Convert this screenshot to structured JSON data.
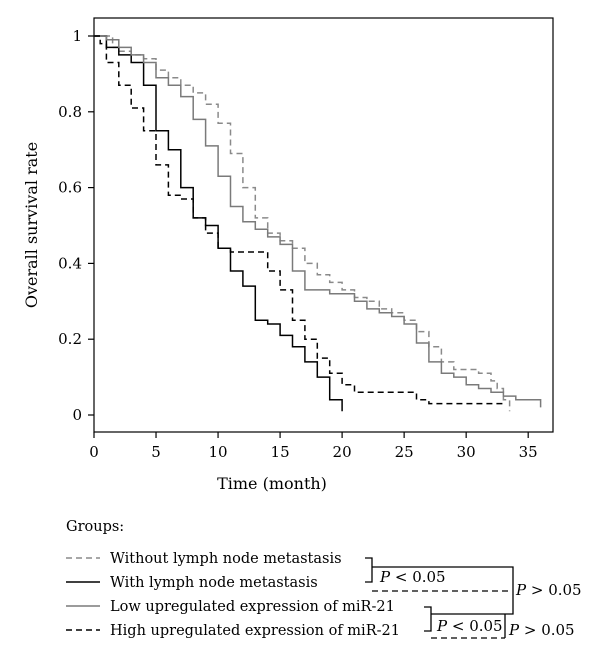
{
  "chart_data": {
    "type": "line",
    "subtype": "kaplan-meier step",
    "title": "",
    "xlabel": "Time (month)",
    "ylabel": "Overall survival rate",
    "xlim": [
      0,
      37
    ],
    "ylim": [
      0,
      1
    ],
    "xticks": [
      0,
      5,
      10,
      15,
      20,
      25,
      30,
      35
    ],
    "yticks": [
      0,
      0.2,
      0.4,
      0.6,
      0.8,
      1
    ],
    "ytick_labels": [
      "0",
      "0.2",
      "0.4",
      "0.6",
      "0.8",
      "1"
    ],
    "grid": false,
    "series": [
      {
        "name": "Without lymph node metastasis",
        "style": "dashed",
        "color": "#8a8a8a",
        "x": [
          0,
          1.5,
          2,
          3,
          4,
          5,
          6,
          7,
          8,
          9,
          10,
          11,
          12,
          13,
          14,
          15,
          16,
          17,
          18,
          19,
          20,
          21,
          22,
          23,
          24,
          25,
          26,
          27,
          28,
          29,
          30,
          31,
          32,
          32.5,
          33,
          33.5
        ],
        "y": [
          1,
          0.97,
          0.96,
          0.95,
          0.94,
          0.91,
          0.89,
          0.87,
          0.85,
          0.82,
          0.77,
          0.69,
          0.6,
          0.52,
          0.48,
          0.46,
          0.44,
          0.4,
          0.37,
          0.35,
          0.33,
          0.31,
          0.3,
          0.28,
          0.27,
          0.25,
          0.22,
          0.18,
          0.14,
          0.12,
          0.12,
          0.11,
          0.09,
          0.07,
          0.04,
          0.01
        ]
      },
      {
        "name": "With lymph node metastasis",
        "style": "solid",
        "color": "#000000",
        "x": [
          0,
          1,
          2,
          3,
          4,
          5,
          6,
          7,
          8,
          9,
          10,
          11,
          12,
          13,
          14,
          15,
          16,
          17,
          18,
          19,
          20
        ],
        "y": [
          1,
          0.97,
          0.95,
          0.93,
          0.87,
          0.75,
          0.7,
          0.6,
          0.52,
          0.5,
          0.44,
          0.38,
          0.34,
          0.25,
          0.24,
          0.21,
          0.18,
          0.14,
          0.1,
          0.04,
          0.01
        ]
      },
      {
        "name": "Low upregulated expression of miR-21",
        "style": "solid",
        "color": "#7a7a7a",
        "x": [
          0,
          1,
          2,
          3,
          4,
          5,
          6,
          7,
          8,
          9,
          10,
          11,
          12,
          13,
          14,
          15,
          16,
          17,
          18,
          19,
          20,
          21,
          22,
          23,
          24,
          25,
          26,
          27,
          28,
          29,
          30,
          31,
          32,
          33,
          34,
          35,
          36
        ],
        "y": [
          1,
          0.99,
          0.97,
          0.95,
          0.93,
          0.89,
          0.87,
          0.84,
          0.78,
          0.71,
          0.63,
          0.55,
          0.51,
          0.49,
          0.47,
          0.45,
          0.38,
          0.33,
          0.33,
          0.32,
          0.32,
          0.3,
          0.28,
          0.27,
          0.26,
          0.24,
          0.19,
          0.14,
          0.11,
          0.1,
          0.08,
          0.07,
          0.06,
          0.05,
          0.04,
          0.04,
          0.02
        ]
      },
      {
        "name": "High upregulated expression of miR-21",
        "style": "dashed",
        "color": "#000000",
        "x": [
          0,
          0.5,
          1,
          2,
          3,
          4,
          5,
          6,
          7,
          8,
          9,
          10,
          11,
          12,
          13,
          14,
          15,
          16,
          17,
          18,
          19,
          20,
          21,
          22,
          23,
          24,
          25,
          26,
          27,
          28,
          29,
          30,
          31,
          32,
          33
        ],
        "y": [
          1,
          0.98,
          0.93,
          0.87,
          0.81,
          0.75,
          0.66,
          0.58,
          0.57,
          0.52,
          0.48,
          0.44,
          0.43,
          0.43,
          0.43,
          0.38,
          0.33,
          0.25,
          0.2,
          0.15,
          0.11,
          0.08,
          0.06,
          0.06,
          0.06,
          0.06,
          0.06,
          0.04,
          0.03,
          0.03,
          0.03,
          0.03,
          0.03,
          0.03,
          0.03
        ]
      }
    ],
    "legend": {
      "title": "Groups:",
      "placement": "bottom-left",
      "comparisons": [
        {
          "groups": [
            "Without lymph node metastasis",
            "With lymph node metastasis"
          ],
          "label": "P < 0.05"
        },
        {
          "groups": [
            "Low upregulated expression of miR-21",
            "High upregulated expression of miR-21"
          ],
          "label": "P < 0.05"
        },
        {
          "groups": [
            "With lymph node metastasis",
            "Low upregulated expression of miR-21"
          ],
          "label": "P > 0.05"
        },
        {
          "groups": [
            "High upregulated expression of miR-21",
            "High upregulated expression of miR-21"
          ],
          "label": "P > 0.05"
        }
      ]
    }
  }
}
